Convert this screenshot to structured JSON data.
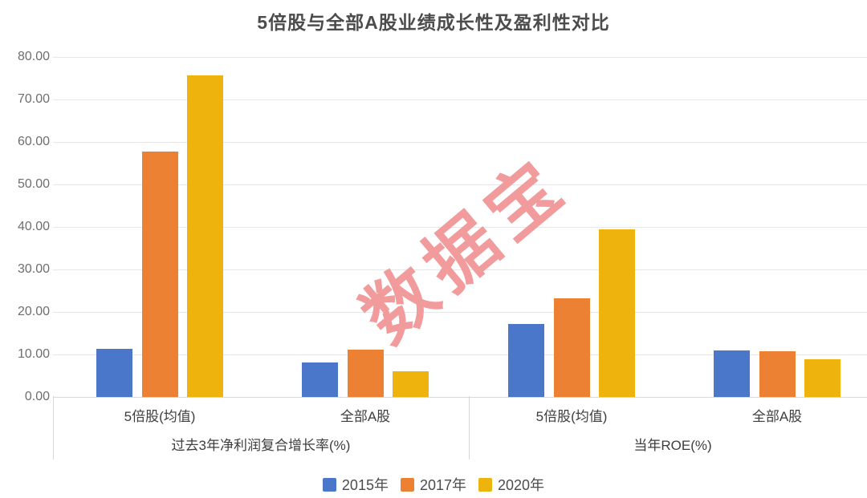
{
  "watermark": "数据宝",
  "colors": {
    "series": [
      "#4a77c9",
      "#ed8133",
      "#efb30d"
    ],
    "watermark": "#f29b9c",
    "grid": "#e7e7e7",
    "axis_tick_text": "#6e6e6e",
    "label_text": "#3d3d3d",
    "title_text": "#4c4c4c"
  },
  "chart_data": {
    "type": "bar",
    "title": "5倍股与全部A股业绩成长性及盈利性对比",
    "xlabel": "",
    "ylabel": "",
    "ylim": [
      0,
      80
    ],
    "grid": true,
    "legend_position": "bottom",
    "tick_labels": [
      "80.00",
      "70.00",
      "60.00",
      "50.00",
      "40.00",
      "30.00",
      "20.00",
      "10.00",
      "0.00"
    ],
    "groups": [
      {
        "label": "过去3年净利润复合增长率(%)",
        "categories": [
          "5倍股(均值)",
          "全部A股"
        ]
      },
      {
        "label": "当年ROE(%)",
        "categories": [
          "5倍股(均值)",
          "全部A股"
        ]
      }
    ],
    "series": [
      {
        "name": "2015年",
        "color": "#4a77c9",
        "values": [
          11.4,
          8.1,
          17.1,
          10.9
        ]
      },
      {
        "name": "2017年",
        "color": "#ed8133",
        "values": [
          57.7,
          11.1,
          23.3,
          10.8
        ]
      },
      {
        "name": "2020年",
        "color": "#efb30d",
        "values": [
          75.7,
          6.0,
          39.4,
          8.9
        ]
      }
    ]
  }
}
